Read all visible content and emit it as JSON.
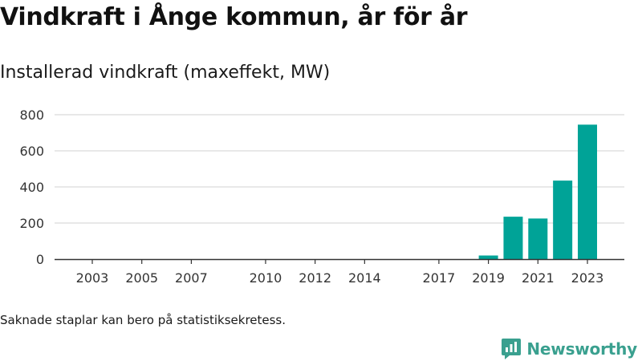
{
  "header": {
    "title": "Vindkraft i Ånge kommun, år för år",
    "subtitle": "Installerad vindkraft (maxeffekt, MW)"
  },
  "footnote": "Saknade staplar kan bero på statistiksekretess.",
  "brand": {
    "name": "Newsworthy",
    "logo_icon": "bar-chart-speech-bubble-icon"
  },
  "colors": {
    "bar": "#00a397",
    "grid": "#d9d9d9",
    "axis": "#333333",
    "brand": "#3aa08f"
  },
  "chart_data": {
    "type": "bar",
    "title": "Installerad vindkraft (maxeffekt, MW)",
    "xlabel": "",
    "ylabel": "",
    "ylim": [
      0,
      800
    ],
    "yticks": [
      0,
      200,
      400,
      600,
      800
    ],
    "grid": true,
    "x_year_range": [
      2002,
      2024
    ],
    "xticks": [
      "2003",
      "2005",
      "2007",
      "2010",
      "2012",
      "2014",
      "2017",
      "2019",
      "2021",
      "2023"
    ],
    "bars": [
      {
        "year": "2019",
        "value": 20
      },
      {
        "year": "2020",
        "value": 235
      },
      {
        "year": "2021",
        "value": 225
      },
      {
        "year": "2022",
        "value": 435
      },
      {
        "year": "2023",
        "value": 745
      }
    ]
  }
}
